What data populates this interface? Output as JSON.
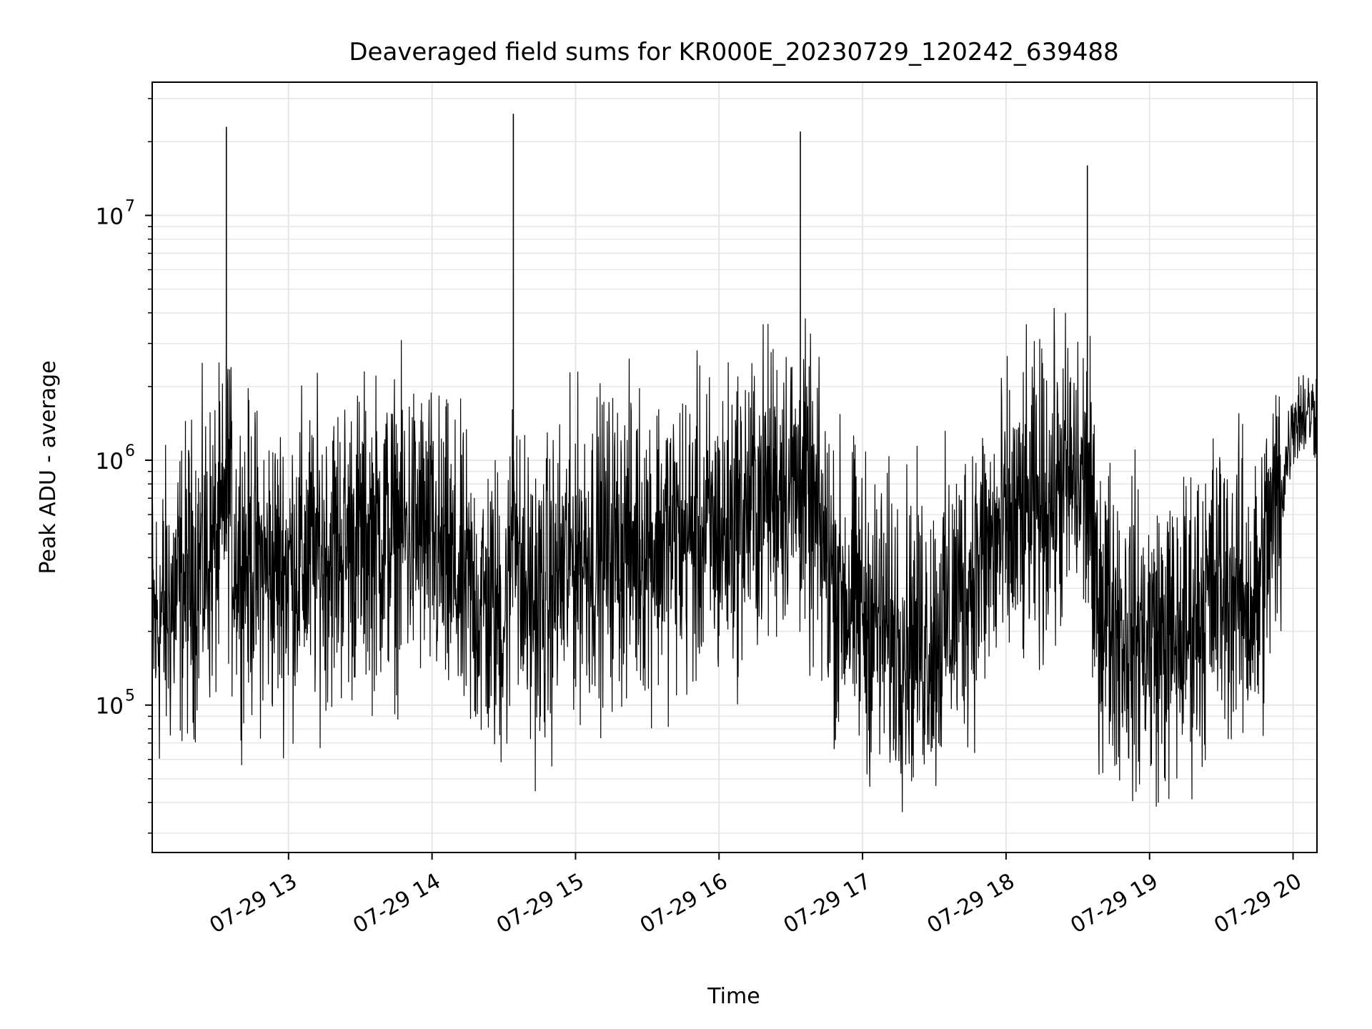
{
  "chart_data": {
    "type": "line",
    "title": "Deaveraged field sums for KR000E_20230729_120242_639488",
    "xlabel": "Time",
    "ylabel": "Peak ADU - average",
    "x_scale": "time",
    "y_scale": "log",
    "grid": true,
    "legend": "none",
    "line_color": "#000000",
    "xlim": [
      "2023-07-29 12:03",
      "2023-07-29 20:10"
    ],
    "ylim": [
      25000,
      35000000
    ],
    "x_ticks": [
      {
        "value": "2023-07-29 13:00",
        "label": "07-29 13"
      },
      {
        "value": "2023-07-29 14:00",
        "label": "07-29 14"
      },
      {
        "value": "2023-07-29 15:00",
        "label": "07-29 15"
      },
      {
        "value": "2023-07-29 16:00",
        "label": "07-29 16"
      },
      {
        "value": "2023-07-29 17:00",
        "label": "07-29 17"
      },
      {
        "value": "2023-07-29 18:00",
        "label": "07-29 18"
      },
      {
        "value": "2023-07-29 19:00",
        "label": "07-29 19"
      },
      {
        "value": "2023-07-29 20:00",
        "label": "07-29 20"
      }
    ],
    "y_ticks": [
      {
        "value": 100000,
        "base": "10",
        "exp": "5"
      },
      {
        "value": 1000000,
        "base": "10",
        "exp": "6"
      },
      {
        "value": 10000000,
        "base": "10",
        "exp": "7"
      }
    ],
    "series": [
      {
        "x": [
          "2023-07-29 12:03",
          "2023-07-29 12:15",
          "2023-07-29 12:30",
          "2023-07-29 12:33",
          "2023-07-29 12:34",
          "2023-07-29 12:36",
          "2023-07-29 12:50",
          "2023-07-29 13:10",
          "2023-07-29 13:30",
          "2023-07-29 13:55",
          "2023-07-29 14:15",
          "2023-07-29 14:30",
          "2023-07-29 14:33",
          "2023-07-29 14:34",
          "2023-07-29 14:36",
          "2023-07-29 14:45",
          "2023-07-29 15:00",
          "2023-07-29 15:30",
          "2023-07-29 16:00",
          "2023-07-29 16:20",
          "2023-07-29 16:33",
          "2023-07-29 16:34",
          "2023-07-29 16:36",
          "2023-07-29 16:50",
          "2023-07-29 17:10",
          "2023-07-29 17:30",
          "2023-07-29 17:50",
          "2023-07-29 18:10",
          "2023-07-29 18:30",
          "2023-07-29 18:33",
          "2023-07-29 18:34",
          "2023-07-29 18:36",
          "2023-07-29 18:50",
          "2023-07-29 19:10",
          "2023-07-29 19:30",
          "2023-07-29 19:45",
          "2023-07-29 19:50",
          "2023-07-29 19:55",
          "2023-07-29 20:00",
          "2023-07-29 20:10"
        ],
        "y": [
          200000,
          300000,
          450000,
          500000,
          23000000,
          450000,
          350000,
          400000,
          480000,
          520000,
          280000,
          230000,
          300000,
          26000000,
          300000,
          250000,
          420000,
          470000,
          500000,
          760000,
          950000,
          22000000,
          700000,
          300000,
          200000,
          190000,
          400000,
          600000,
          900000,
          850000,
          16000000,
          300000,
          200000,
          180000,
          320000,
          250000,
          500000,
          700000,
          1500000,
          1600000
        ]
      }
    ]
  }
}
